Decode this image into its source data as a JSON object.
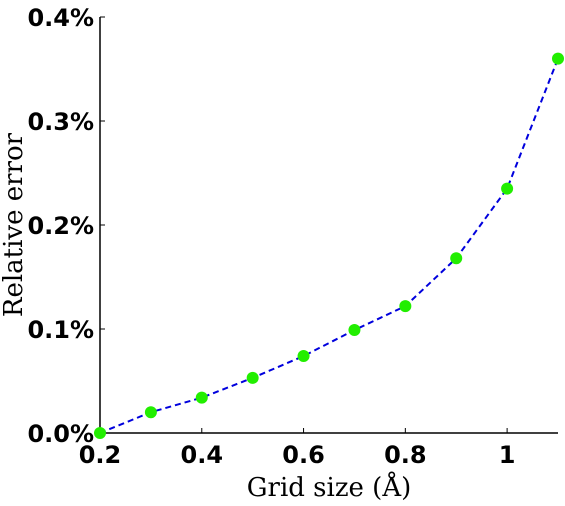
{
  "chart_data": {
    "type": "line",
    "title": "",
    "xlabel": "Grid size (Å)",
    "ylabel": "Relative error",
    "xlim": [
      0.2,
      1.1
    ],
    "ylim": [
      0,
      0.4
    ],
    "xticks": [
      0.2,
      0.4,
      0.6,
      0.8,
      1.0
    ],
    "xtick_labels": [
      "0.2",
      "0.4",
      "0.6",
      "0.8",
      "1"
    ],
    "yticks": [
      0,
      0.1,
      0.2,
      0.3,
      0.4
    ],
    "ytick_labels": [
      "0.0%",
      "0.1%",
      "0.2%",
      "0.3%",
      "0.4%"
    ],
    "grid": false,
    "series": [
      {
        "x": [
          0.2,
          0.3,
          0.4,
          0.5,
          0.6,
          0.7,
          0.8,
          0.9,
          1.0,
          1.1
        ],
        "y": [
          0.0,
          0.02,
          0.034,
          0.053,
          0.074,
          0.099,
          0.122,
          0.168,
          0.235,
          0.36
        ],
        "line_style": "dashed",
        "line_color": "#0000dd",
        "marker_color": "#22ee00"
      }
    ]
  }
}
